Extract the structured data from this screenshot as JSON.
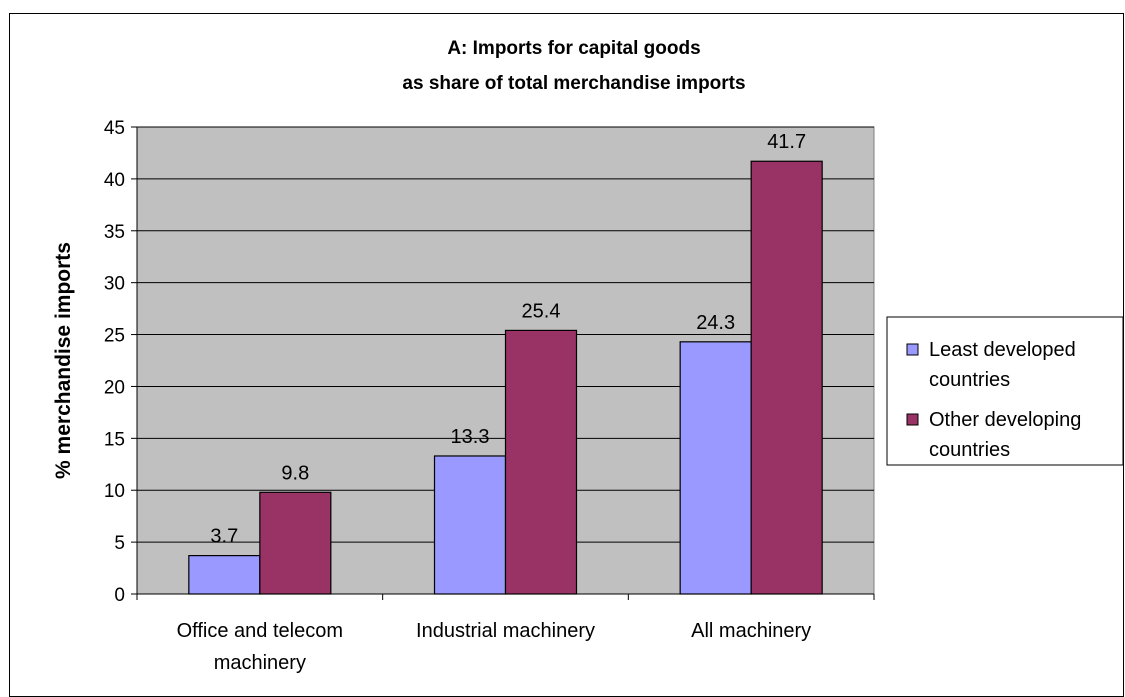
{
  "chart_data": {
    "type": "bar",
    "title": "A: Imports for capital goods",
    "subtitle": "as share of total merchandise imports",
    "ylabel": "% merchandise imports",
    "xlabel": "",
    "categories": [
      [
        "Office and telecom",
        "machinery"
      ],
      [
        "Industrial machinery"
      ],
      [
        "All machinery"
      ]
    ],
    "series": [
      {
        "name": [
          "Least developed",
          "countries"
        ],
        "values": [
          3.7,
          13.3,
          24.3
        ],
        "color": "#9999ff"
      },
      {
        "name": [
          "Other developing",
          "countries"
        ],
        "values": [
          9.8,
          25.4,
          41.7
        ],
        "color": "#993366"
      }
    ],
    "value_labels": [
      [
        "3.7",
        "13.3",
        "24.3"
      ],
      [
        "9.8",
        "25.4",
        "41.7"
      ]
    ],
    "ylim": [
      0,
      45
    ],
    "yticks": [
      "0",
      "5",
      "10",
      "15",
      "20",
      "25",
      "30",
      "35",
      "40",
      "45"
    ],
    "grid": true,
    "plot_background": "#c0c0c0",
    "legend_position": "right"
  }
}
